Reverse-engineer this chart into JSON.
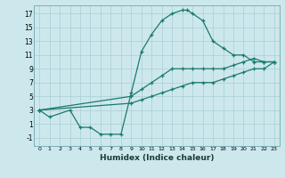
{
  "xlabel": "Humidex (Indice chaleur)",
  "bg_color": "#cde8ec",
  "grid_color": "#a8cdd4",
  "line_color": "#1a7a6e",
  "xlim": [
    -0.5,
    23.5
  ],
  "ylim": [
    -2.2,
    18.2
  ],
  "xticks": [
    0,
    1,
    2,
    3,
    4,
    5,
    6,
    7,
    8,
    9,
    10,
    11,
    12,
    13,
    14,
    15,
    16,
    17,
    18,
    19,
    20,
    21,
    22,
    23
  ],
  "yticks": [
    -1,
    1,
    3,
    5,
    7,
    9,
    11,
    13,
    15,
    17
  ],
  "series": [
    {
      "x": [
        0,
        1,
        3,
        4,
        5,
        6,
        7,
        8,
        9,
        10,
        11,
        12,
        13,
        14,
        14.5,
        15,
        16,
        17,
        18,
        19,
        20,
        21,
        22,
        23
      ],
      "y": [
        3,
        2,
        3,
        0.5,
        0.5,
        -0.5,
        -0.5,
        -0.5,
        5.5,
        11.5,
        14,
        16,
        17,
        17.5,
        17.5,
        17,
        16,
        13,
        12,
        11,
        11,
        10,
        10,
        10
      ]
    },
    {
      "x": [
        0,
        9,
        10,
        11,
        12,
        13,
        14,
        15,
        16,
        17,
        18,
        19,
        20,
        21,
        22,
        23
      ],
      "y": [
        3,
        5,
        6,
        7,
        8,
        9,
        9,
        9,
        9,
        9,
        9,
        9.5,
        10,
        10.5,
        10,
        10
      ]
    },
    {
      "x": [
        0,
        9,
        10,
        11,
        12,
        13,
        14,
        15,
        16,
        17,
        18,
        19,
        20,
        21,
        22,
        23
      ],
      "y": [
        3,
        4,
        4.5,
        5,
        5.5,
        6,
        6.5,
        7,
        7,
        7,
        7.5,
        8,
        8.5,
        9,
        9,
        10
      ]
    }
  ]
}
